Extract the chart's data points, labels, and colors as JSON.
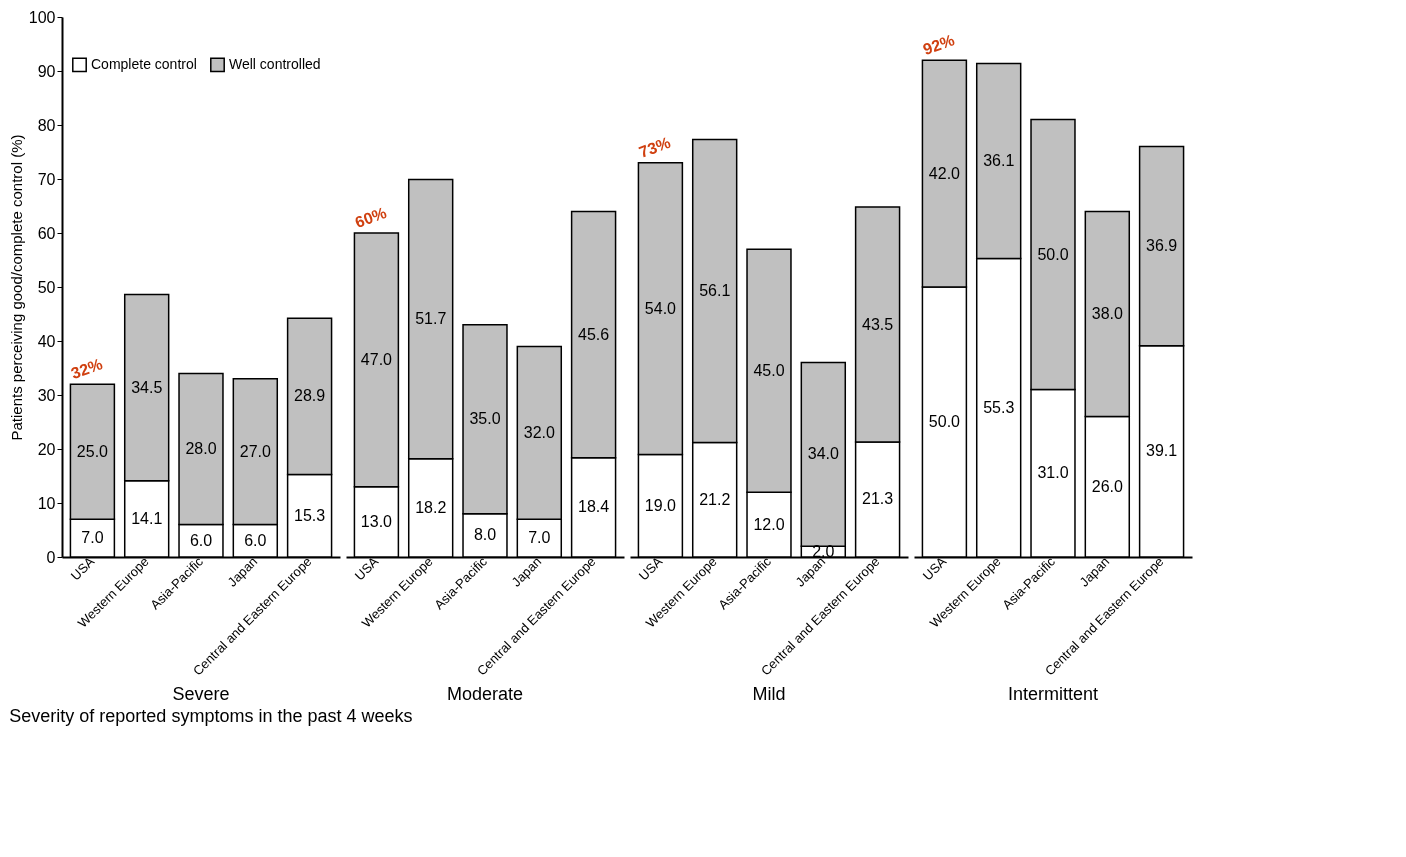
{
  "chart_data": [
    {
      "type": "bar",
      "title": "Severe",
      "xlabel": "Severity of reported symptoms in the past 4 weeks",
      "ylabel": "Patients perceiving good/complete control (%)",
      "stacked": true,
      "legend": "top",
      "grid": false,
      "ylim": [
        0,
        100
      ],
      "yticks": [
        0,
        10,
        20,
        30,
        40,
        50,
        60,
        70,
        80,
        90,
        100
      ],
      "categories": [
        "USA",
        "Western Europe",
        "Asia-Pacific",
        "Japan",
        "Central and Eastern Europe"
      ],
      "series": [
        {
          "name": "Complete control",
          "color": "#ffffff",
          "values": [
            7.0,
            14.1,
            6.0,
            6.0,
            15.3
          ],
          "value_labels": [
            "7.0",
            "14.1",
            "6.0",
            "6.0",
            "15.3"
          ]
        },
        {
          "name": "Well controlled",
          "color": "#c0c0c0",
          "values": [
            25.0,
            34.5,
            28.0,
            27.0,
            28.9
          ],
          "value_labels": [
            "25.0",
            "34.5",
            "28.0",
            "27.0",
            "28.9"
          ]
        }
      ],
      "annotations": [
        {
          "text": "32%",
          "x": "USA",
          "y": 32
        }
      ]
    },
    {
      "type": "bar",
      "title": "Moderate",
      "stacked": true,
      "tick_labels": "x",
      "grid": false,
      "ylim": [
        0,
        100
      ],
      "categories": [
        "USA",
        "Western Europe",
        "Asia-Pacific",
        "Japan",
        "Central and Eastern Europe"
      ],
      "series": [
        {
          "color": "#ffffff",
          "values": [
            13.0,
            18.2,
            8.0,
            7.0,
            18.4
          ],
          "value_labels": [
            "13.0",
            "18.2",
            "8.0",
            "7.0",
            "18.4"
          ]
        },
        {
          "color": "#c0c0c0",
          "values": [
            47.0,
            51.7,
            35.0,
            32.0,
            45.6
          ],
          "value_labels": [
            "47.0",
            "51.7",
            "35.0",
            "32.0",
            "45.6"
          ]
        }
      ],
      "annotations": [
        {
          "text": "60%",
          "x": "USA",
          "y": 60
        }
      ]
    },
    {
      "type": "bar",
      "title": "Mild",
      "stacked": true,
      "tick_labels": "x",
      "grid": false,
      "ylim": [
        0,
        100
      ],
      "categories": [
        "USA",
        "Western Europe",
        "Asia-Pacific",
        "Japan",
        "Central and Eastern Europe"
      ],
      "series": [
        {
          "color": "#ffffff",
          "values": [
            19.0,
            21.2,
            12.0,
            2.0,
            21.3
          ],
          "value_labels": [
            "19.0",
            "21.2",
            "12.0",
            "2.0",
            "21.3"
          ]
        },
        {
          "color": "#c0c0c0",
          "values": [
            54.0,
            56.1,
            45.0,
            34.0,
            43.5
          ],
          "value_labels": [
            "54.0",
            "56.1",
            "45.0",
            "34.0",
            "43.5"
          ]
        }
      ],
      "annotations": [
        {
          "text": "73%",
          "x": "USA",
          "y": 73
        }
      ]
    },
    {
      "type": "bar",
      "title": "Intermittent",
      "stacked": true,
      "tick_labels": "x",
      "grid": false,
      "ylim": [
        0,
        100
      ],
      "categories": [
        "USA",
        "Western Europe",
        "Asia-Pacific",
        "Japan",
        "Central and Eastern Europe"
      ],
      "series": [
        {
          "color": "#ffffff",
          "values": [
            50.0,
            55.3,
            31.0,
            26.0,
            39.1
          ],
          "value_labels": [
            "50.0",
            "55.3",
            "31.0",
            "26.0",
            "39.1"
          ]
        },
        {
          "color": "#c0c0c0",
          "values": [
            42.0,
            36.1,
            50.0,
            38.0,
            36.9
          ],
          "value_labels": [
            "42.0",
            "36.1",
            "50.0",
            "38.0",
            "36.9"
          ]
        }
      ],
      "annotations": [
        {
          "text": "92%",
          "x": "USA",
          "y": 92
        }
      ]
    }
  ]
}
